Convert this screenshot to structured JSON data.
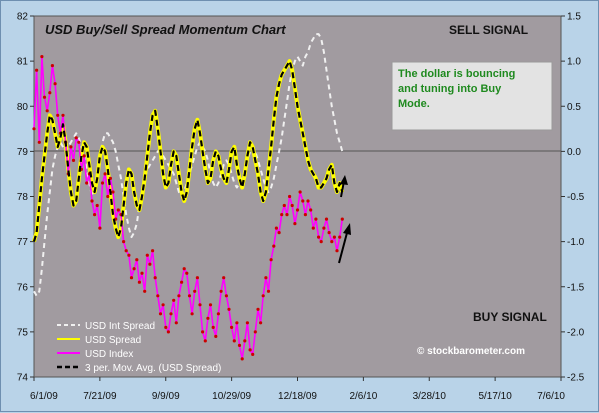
{
  "chart_data": {
    "type": "line",
    "title": "USD Buy/Sell Spread Momentum Chart",
    "sell_signal_label": "SELL SIGNAL",
    "buy_signal_label": "BUY SIGNAL",
    "annotation": [
      "The dollar is bouncing",
      "and tuning into Buy",
      "Mode."
    ],
    "watermark": "© stockbarometer.com",
    "x_tick_labels": [
      "6/1/09",
      "7/21/09",
      "9/9/09",
      "10/29/09",
      "12/18/09",
      "2/6/10",
      "3/28/10",
      "5/17/10",
      "7/6/10"
    ],
    "y_left": {
      "range": [
        74,
        82
      ],
      "ticks": [
        "74",
        "75",
        "76",
        "77",
        "78",
        "79",
        "80",
        "81",
        "82"
      ]
    },
    "y_right": {
      "range": [
        -2.5,
        1.5
      ],
      "ticks": [
        "-2.5",
        "-2.0",
        "-1.5",
        "-1.0",
        "-0.5",
        "0.0",
        "0.5",
        "1.0",
        "1.5"
      ]
    },
    "grid": false,
    "legend_position": "bottom-left",
    "colors": {
      "plot_bg": "#a19ba0",
      "outer_bg": "#b9d3e8",
      "int_spread": "#f0f0f0",
      "spread": "#ffff00",
      "usd_index": "#ff00ff",
      "mov_avg": "#000000",
      "note_text": "#1f8a1f"
    },
    "series": [
      {
        "name": "USD Int Spread",
        "axis": "right",
        "x": [
          0,
          2,
          4,
          6,
          8,
          10,
          12,
          14,
          16,
          18,
          20,
          22,
          24,
          26,
          28,
          30,
          32,
          34,
          36,
          38,
          40,
          42,
          44,
          46,
          48,
          50,
          52,
          54,
          56,
          58,
          60,
          62,
          64,
          66,
          68,
          70,
          72,
          74,
          76,
          78,
          80,
          82,
          84,
          86,
          88,
          90,
          92,
          94,
          96,
          98,
          100,
          102,
          104,
          106,
          108,
          110,
          112,
          114,
          116,
          118,
          120,
          122,
          124,
          126,
          128,
          130,
          132,
          134,
          136,
          138,
          140,
          142,
          144,
          146,
          148,
          150,
          152,
          154,
          156,
          158,
          160,
          162,
          164,
          166,
          168,
          170,
          172,
          174,
          176,
          178,
          180,
          182,
          184,
          186,
          188,
          190,
          192,
          194,
          196,
          198,
          200,
          202,
          204,
          206,
          208,
          210,
          212,
          214,
          216,
          218,
          220,
          222,
          224,
          226,
          228,
          230,
          232,
          234
        ],
        "values": [
          -1.55,
          -1.6,
          -1.55,
          -1.3,
          -1.0,
          -0.7,
          -0.45,
          -0.2,
          -0.05,
          0.05,
          0.1,
          0.05,
          0.0,
          0.05,
          0.1,
          0.15,
          0.2,
          0.15,
          0.05,
          -0.05,
          -0.2,
          -0.35,
          -0.5,
          -0.4,
          -0.25,
          -0.05,
          0.1,
          0.2,
          0.2,
          0.15,
          0.1,
          0.0,
          -0.15,
          -0.3,
          -0.5,
          -0.7,
          -0.85,
          -0.95,
          -0.9,
          -0.8,
          -0.6,
          -0.45,
          -0.3,
          -0.2,
          -0.15,
          -0.1,
          -0.05,
          0.0,
          0.0,
          -0.05,
          -0.1,
          -0.15,
          -0.2,
          -0.25,
          -0.35,
          -0.45,
          -0.5,
          -0.45,
          -0.35,
          -0.25,
          -0.15,
          -0.05,
          0.05,
          0.1,
          0.05,
          0.0,
          -0.1,
          -0.25,
          -0.35,
          -0.4,
          -0.35,
          -0.25,
          -0.15,
          -0.1,
          -0.15,
          -0.25,
          -0.35,
          -0.4,
          -0.35,
          -0.3,
          -0.2,
          -0.1,
          0.0,
          0.05,
          0.0,
          -0.1,
          -0.2,
          -0.3,
          -0.4,
          -0.45,
          -0.4,
          -0.3,
          -0.15,
          0.0,
          0.15,
          0.35,
          0.55,
          0.75,
          0.9,
          1.0,
          1.05,
          1.0,
          0.95,
          1.05,
          1.1,
          1.2,
          1.25,
          1.3,
          1.3,
          1.25,
          1.1,
          0.9,
          0.7,
          0.5,
          0.35,
          0.2,
          0.1,
          0.0
        ]
      },
      {
        "name": "USD Spread",
        "axis": "right",
        "x": [
          0,
          2,
          4,
          6,
          8,
          10,
          12,
          14,
          16,
          18,
          20,
          22,
          24,
          26,
          28,
          30,
          32,
          34,
          36,
          38,
          40,
          42,
          44,
          46,
          48,
          50,
          52,
          54,
          56,
          58,
          60,
          62,
          64,
          66,
          68,
          70,
          72,
          74,
          76,
          78,
          80,
          82,
          84,
          86,
          88,
          90,
          92,
          94,
          96,
          98,
          100,
          102,
          104,
          106,
          108,
          110,
          112,
          114,
          116,
          118,
          120,
          122,
          124,
          126,
          128,
          130,
          132,
          134,
          136,
          138,
          140,
          142,
          144,
          146,
          148,
          150,
          152,
          154,
          156,
          158,
          160,
          162,
          164,
          166,
          168,
          170,
          172,
          174,
          176,
          178,
          180,
          182,
          184,
          186,
          188,
          190,
          192,
          194,
          196,
          198,
          200,
          202,
          204,
          206,
          208,
          210,
          212,
          214,
          216,
          218,
          220,
          222,
          224,
          226,
          228,
          230,
          232,
          234
        ],
        "values": [
          -1.0,
          -0.9,
          -0.6,
          -0.3,
          -0.05,
          0.2,
          0.4,
          0.35,
          0.2,
          0.05,
          0.15,
          0.3,
          0.1,
          -0.2,
          -0.45,
          -0.6,
          -0.55,
          -0.3,
          -0.05,
          0.1,
          0.05,
          -0.15,
          -0.35,
          -0.45,
          -0.3,
          -0.05,
          0.05,
          0.0,
          -0.2,
          -0.45,
          -0.7,
          -0.85,
          -0.95,
          -0.85,
          -0.6,
          -0.35,
          -0.2,
          -0.25,
          -0.45,
          -0.6,
          -0.65,
          -0.5,
          -0.3,
          -0.05,
          0.2,
          0.4,
          0.45,
          0.25,
          0.0,
          -0.25,
          -0.4,
          -0.35,
          -0.15,
          0.0,
          -0.05,
          -0.25,
          -0.45,
          -0.55,
          -0.45,
          -0.2,
          0.05,
          0.25,
          0.35,
          0.2,
          0.0,
          -0.2,
          -0.35,
          -0.3,
          -0.1,
          0.0,
          -0.05,
          -0.2,
          -0.3,
          -0.35,
          -0.2,
          0.0,
          0.05,
          -0.15,
          -0.3,
          -0.4,
          -0.25,
          -0.05,
          0.1,
          0.05,
          -0.1,
          -0.25,
          -0.45,
          -0.55,
          -0.45,
          -0.2,
          0.05,
          0.35,
          0.6,
          0.75,
          0.85,
          0.9,
          0.95,
          1.0,
          0.9,
          0.7,
          0.5,
          0.35,
          0.2,
          0.05,
          -0.1,
          -0.2,
          -0.25,
          -0.3,
          -0.4,
          -0.4,
          -0.35,
          -0.3,
          -0.2,
          -0.15,
          -0.35,
          -0.45,
          -0.35,
          -0.45
        ]
      },
      {
        "name": "USD Index",
        "axis": "left",
        "x": [
          0,
          2,
          4,
          6,
          8,
          10,
          12,
          14,
          16,
          18,
          20,
          22,
          24,
          26,
          28,
          30,
          32,
          34,
          36,
          38,
          40,
          42,
          44,
          46,
          48,
          50,
          52,
          54,
          56,
          58,
          60,
          62,
          64,
          66,
          68,
          70,
          72,
          74,
          76,
          78,
          80,
          82,
          84,
          86,
          88,
          90,
          92,
          94,
          96,
          98,
          100,
          102,
          104,
          106,
          108,
          110,
          112,
          114,
          116,
          118,
          120,
          122,
          124,
          126,
          128,
          130,
          132,
          134,
          136,
          138,
          140,
          142,
          144,
          146,
          148,
          150,
          152,
          154,
          156,
          158,
          160,
          162,
          164,
          166,
          168,
          170,
          172,
          174,
          176,
          178,
          180,
          182,
          184,
          186,
          188,
          190,
          192,
          194,
          196,
          198,
          200,
          202,
          204,
          206,
          208,
          210,
          212,
          214,
          216,
          218,
          220,
          222,
          224,
          226,
          228,
          230,
          232,
          234
        ],
        "values": [
          79.5,
          80.8,
          79.2,
          81.1,
          80.2,
          79.9,
          80.3,
          80.9,
          80.5,
          79.8,
          79.4,
          79.8,
          79.2,
          78.5,
          79.1,
          78.8,
          79.3,
          79.2,
          78.6,
          78.9,
          78.3,
          78.5,
          77.9,
          77.6,
          77.8,
          77.3,
          78.3,
          78.5,
          78.0,
          78.4,
          78.1,
          77.5,
          77.7,
          77.6,
          77.0,
          76.8,
          76.7,
          76.2,
          76.4,
          76.6,
          76.1,
          76.3,
          75.9,
          76.7,
          76.5,
          76.8,
          76.2,
          75.8,
          75.4,
          75.6,
          75.1,
          75.0,
          75.4,
          75.7,
          75.2,
          75.8,
          76.1,
          76.4,
          76.3,
          75.8,
          75.4,
          75.9,
          76.2,
          75.6,
          75.0,
          74.8,
          75.3,
          75.6,
          75.1,
          74.9,
          75.4,
          75.9,
          76.2,
          75.8,
          75.5,
          75.1,
          74.8,
          75.2,
          74.7,
          74.4,
          74.8,
          75.2,
          74.6,
          74.5,
          75.0,
          75.5,
          75.2,
          75.8,
          76.2,
          75.9,
          76.6,
          76.9,
          77.3,
          77.2,
          77.6,
          77.8,
          77.6,
          78.0,
          77.8,
          77.4,
          77.7,
          78.1,
          77.9,
          77.6,
          77.9,
          77.7,
          77.3,
          77.5,
          77.1,
          77.0,
          77.3,
          77.5,
          77.2,
          77.0,
          77.1,
          76.8,
          77.1,
          77.5
        ]
      },
      {
        "name": "3 per. Mov. Avg. (USD Spread)",
        "axis": "right",
        "x": [
          0,
          2,
          4,
          6,
          8,
          10,
          12,
          14,
          16,
          18,
          20,
          22,
          24,
          26,
          28,
          30,
          32,
          34,
          36,
          38,
          40,
          42,
          44,
          46,
          48,
          50,
          52,
          54,
          56,
          58,
          60,
          62,
          64,
          66,
          68,
          70,
          72,
          74,
          76,
          78,
          80,
          82,
          84,
          86,
          88,
          90,
          92,
          94,
          96,
          98,
          100,
          102,
          104,
          106,
          108,
          110,
          112,
          114,
          116,
          118,
          120,
          122,
          124,
          126,
          128,
          130,
          132,
          134,
          136,
          138,
          140,
          142,
          144,
          146,
          148,
          150,
          152,
          154,
          156,
          158,
          160,
          162,
          164,
          166,
          168,
          170,
          172,
          174,
          176,
          178,
          180,
          182,
          184,
          186,
          188,
          190,
          192,
          194,
          196,
          198,
          200,
          202,
          204,
          206,
          208,
          210,
          212,
          214,
          216,
          218,
          220,
          222,
          224,
          226,
          228,
          230,
          232,
          234
        ],
        "values": [
          -1.0,
          -0.9,
          -0.6,
          -0.3,
          -0.05,
          0.2,
          0.4,
          0.35,
          0.2,
          0.05,
          0.15,
          0.3,
          0.1,
          -0.2,
          -0.45,
          -0.6,
          -0.55,
          -0.3,
          -0.05,
          0.1,
          0.05,
          -0.15,
          -0.35,
          -0.45,
          -0.3,
          -0.05,
          0.05,
          0.0,
          -0.2,
          -0.45,
          -0.7,
          -0.85,
          -0.95,
          -0.85,
          -0.6,
          -0.35,
          -0.2,
          -0.25,
          -0.45,
          -0.6,
          -0.65,
          -0.5,
          -0.3,
          -0.05,
          0.2,
          0.4,
          0.45,
          0.25,
          0.0,
          -0.25,
          -0.4,
          -0.35,
          -0.15,
          0.0,
          -0.05,
          -0.25,
          -0.45,
          -0.55,
          -0.45,
          -0.2,
          0.05,
          0.25,
          0.35,
          0.2,
          0.0,
          -0.2,
          -0.35,
          -0.3,
          -0.1,
          0.0,
          -0.05,
          -0.2,
          -0.3,
          -0.35,
          -0.2,
          0.0,
          0.05,
          -0.15,
          -0.3,
          -0.4,
          -0.25,
          -0.05,
          0.1,
          0.05,
          -0.1,
          -0.25,
          -0.45,
          -0.55,
          -0.45,
          -0.2,
          0.05,
          0.35,
          0.6,
          0.75,
          0.85,
          0.9,
          0.95,
          1.0,
          0.9,
          0.7,
          0.5,
          0.35,
          0.2,
          0.05,
          -0.1,
          -0.2,
          -0.25,
          -0.3,
          -0.4,
          -0.4,
          -0.35,
          -0.3,
          -0.2,
          -0.15,
          -0.35,
          -0.45,
          -0.35,
          -0.45
        ]
      }
    ]
  }
}
